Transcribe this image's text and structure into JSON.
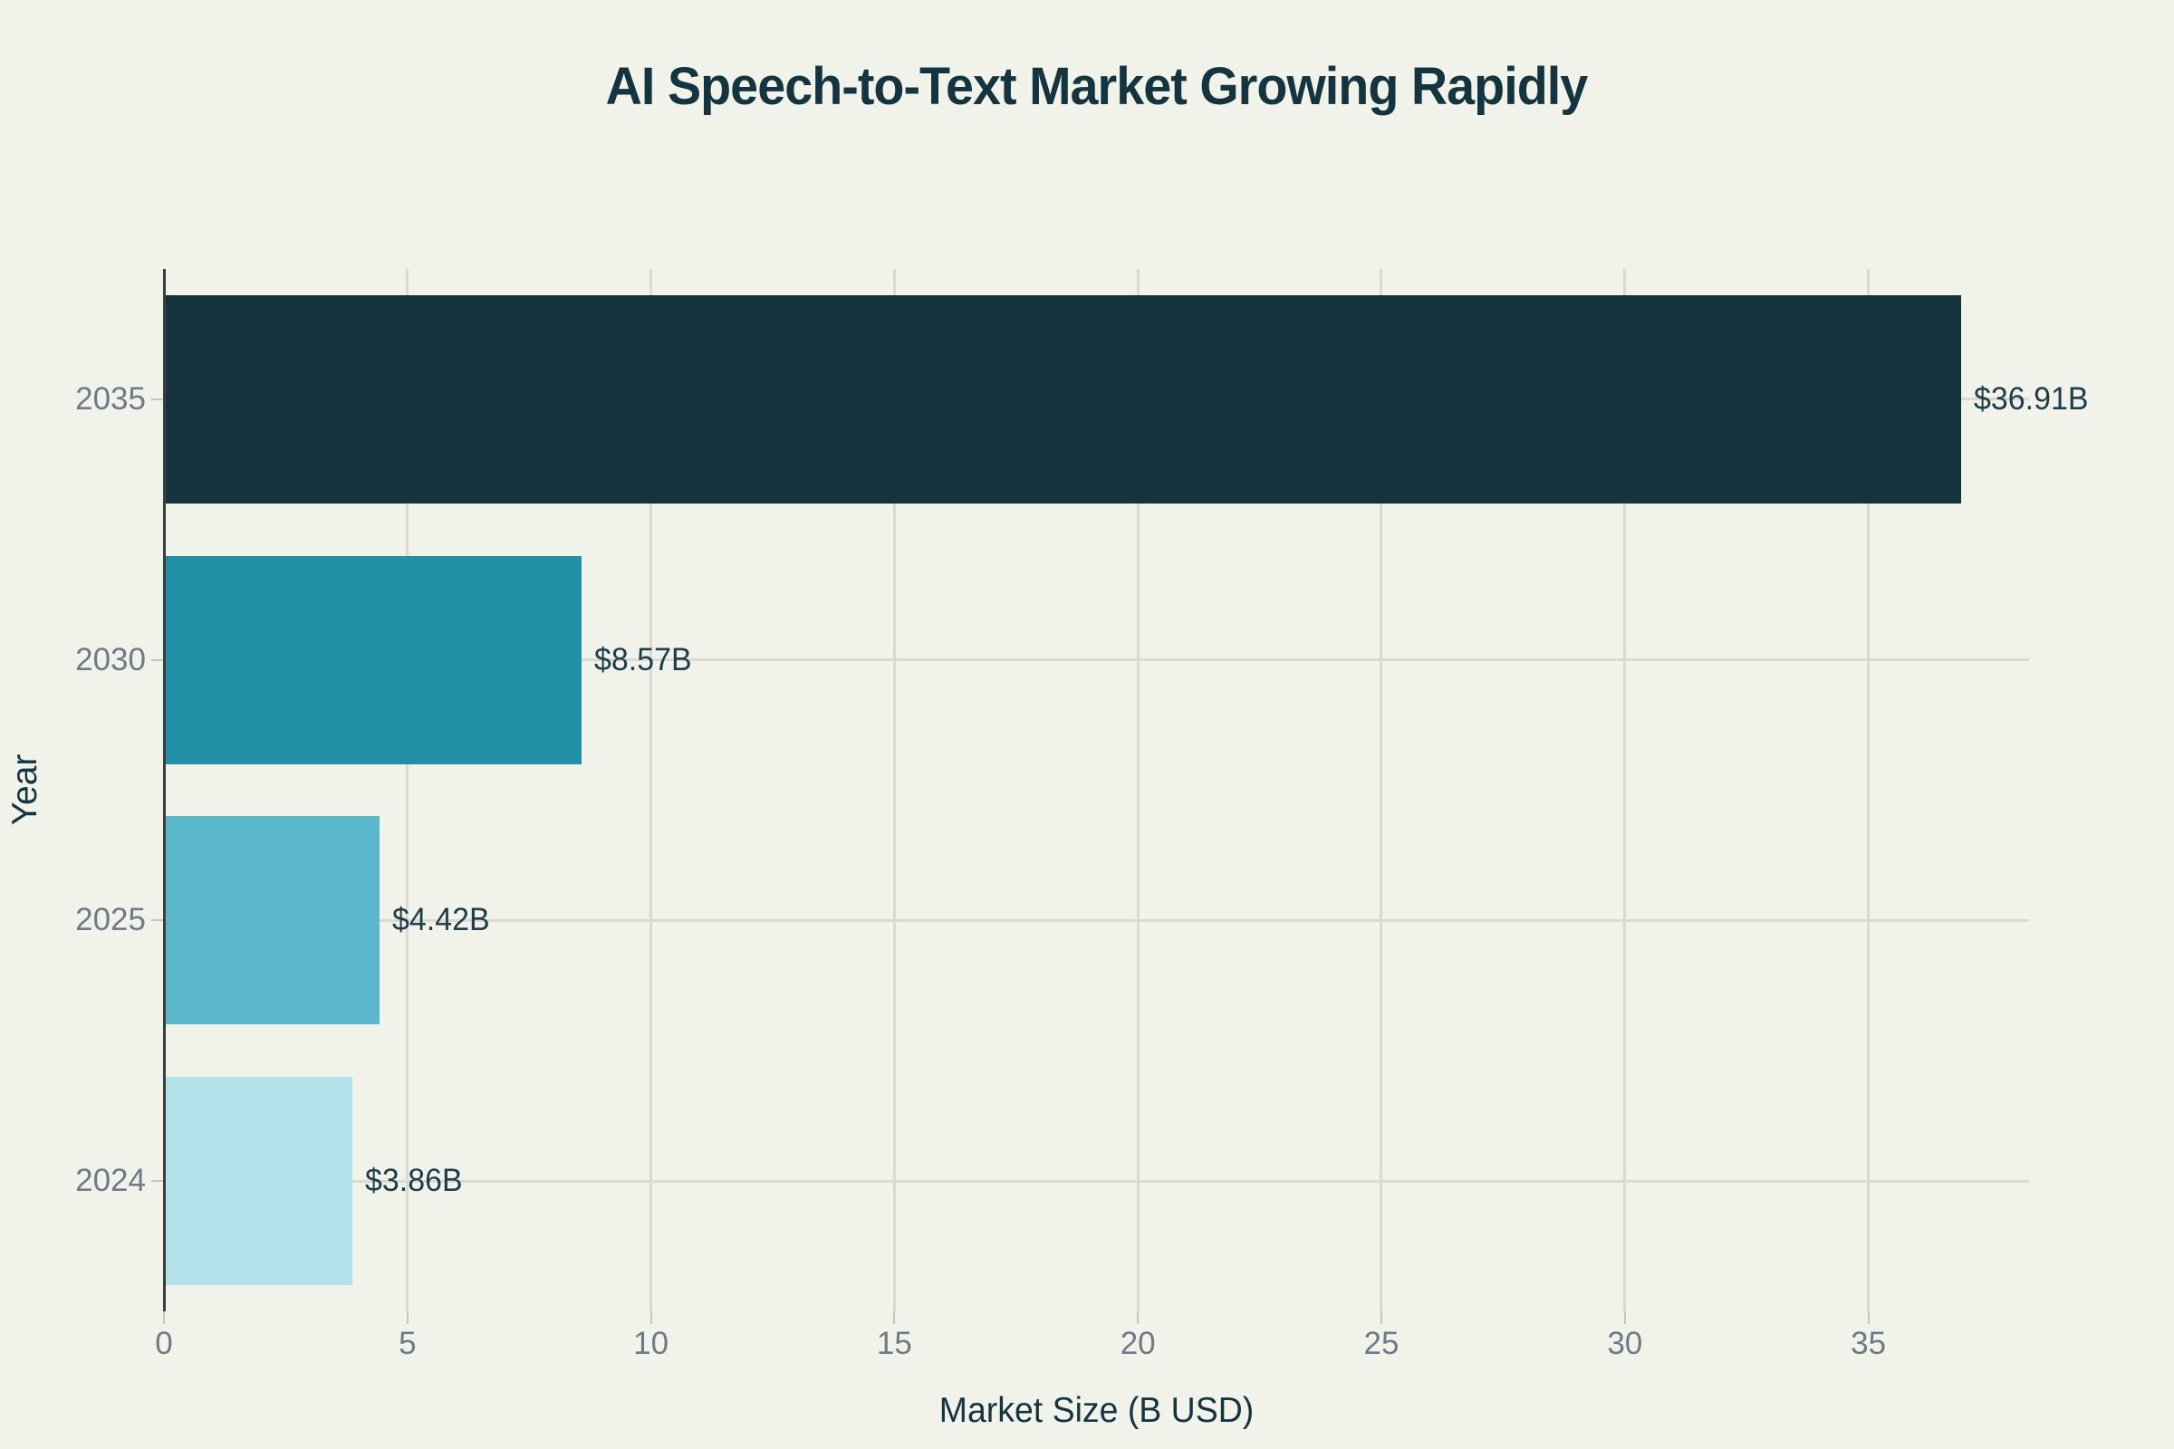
{
  "page": {
    "background_color": "#f1f2ea"
  },
  "chart_data": {
    "type": "bar",
    "orientation": "horizontal",
    "title": "AI Speech-to-Text Market Growing Rapidly",
    "xlabel": "Market Size (B USD)",
    "ylabel": "Year",
    "categories": [
      "2035",
      "2030",
      "2025",
      "2024"
    ],
    "values": [
      36.91,
      8.57,
      4.42,
      3.86
    ],
    "value_labels": [
      "$36.91B",
      "$8.57B",
      "$4.42B",
      "$3.86B"
    ],
    "bar_colors": [
      "#14333d",
      "#2190a6",
      "#5bb8cc",
      "#b3e2eb"
    ],
    "xticks": [
      0,
      5,
      10,
      15,
      20,
      25,
      30,
      35
    ],
    "xtick_labels": [
      "0",
      "5",
      "10",
      "15",
      "20",
      "25",
      "30",
      "35"
    ],
    "xlim": [
      0,
      38.3
    ],
    "grid": true,
    "legend": "none",
    "colors": {
      "title_text": "#14353f",
      "value_label_text": "#1d3e48",
      "tick_label_text": "#6e7a85",
      "gridline": "#dcd9d3",
      "axis_line": "#3b3f3d",
      "tick_mark": "#c8c5bf"
    }
  }
}
